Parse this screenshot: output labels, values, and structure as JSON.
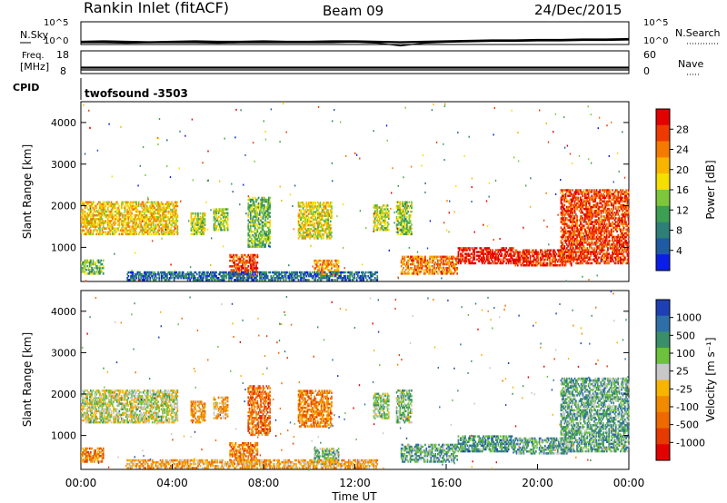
{
  "header": {
    "station": "Rankin Inlet (fitACF)",
    "beam": "Beam 09",
    "date": "24/Dec/2015"
  },
  "chart_data": [
    {
      "type": "line",
      "panel": "noise",
      "left_label": "N.Sky",
      "right_label": "N.Search",
      "left_ticks": [
        "10^5",
        "10^0"
      ],
      "right_ticks": [
        "10^5",
        "10^0"
      ],
      "ylim": [
        0,
        5
      ],
      "x_range_hours": [
        0,
        24
      ],
      "series": [
        {
          "values": [
            0.6,
            0.7,
            0.6,
            0.5,
            0.6,
            0.7,
            0.6,
            0.6,
            0.7,
            0.6,
            0.6,
            0.7,
            0.7,
            0.6,
            0.5,
            0.6,
            0.7,
            0.8,
            0.9,
            0.9,
            1.0,
            1.0,
            1.1,
            1.1,
            1.2
          ]
        },
        {
          "values": [
            0.4,
            0.4,
            0.3,
            0.4,
            0.4,
            0.4,
            0.3,
            0.4,
            0.4,
            0.4,
            0.4,
            0.4,
            0.5,
            0.3,
            -0.3,
            0.3,
            0.5,
            0.6,
            0.7,
            0.7,
            0.8,
            0.8,
            0.9,
            0.9,
            1.0
          ]
        }
      ]
    },
    {
      "type": "line",
      "panel": "frequency",
      "left_label": "Freq.",
      "left_unit": "[MHz]",
      "right_label": "Nave",
      "left_ticks": [
        "18",
        "8"
      ],
      "right_ticks": [
        "60",
        "0"
      ],
      "ylim": [
        8,
        18
      ],
      "x_range_hours": [
        0,
        24
      ],
      "series": [
        {
          "values": [
            10.6,
            10.6,
            10.6,
            10.6,
            10.6,
            10.6,
            10.6,
            10.6,
            10.6,
            10.6,
            10.6,
            10.6,
            10.6,
            10.6,
            10.6,
            10.6,
            10.6,
            10.6,
            10.6,
            10.6,
            10.6,
            10.6,
            10.6,
            10.6,
            10.6
          ]
        },
        {
          "values": [
            9.6,
            9.6,
            9.6,
            9.6,
            9.6,
            9.6,
            9.6,
            9.6,
            9.6,
            9.6,
            9.6,
            9.6,
            9.6,
            9.6,
            9.6,
            9.6,
            9.6,
            9.6,
            9.6,
            9.6,
            9.6,
            9.6,
            9.6,
            9.6,
            9.6
          ]
        }
      ]
    },
    {
      "type": "heatmap",
      "panel": "power",
      "cpid_label": "CPID",
      "cpid_value": "twofsound -3503",
      "ylabel": "Slant Range [km]",
      "yticks": [
        1000,
        2000,
        3000,
        4000
      ],
      "ylim": [
        180,
        4500
      ],
      "xlim": [
        0,
        24
      ],
      "colorbar": {
        "label": "Power [dB]",
        "ticks": [
          "28",
          "24",
          "20",
          "16",
          "12",
          "8",
          "4"
        ],
        "colors": [
          "#e30000",
          "#ee3a00",
          "#f57a00",
          "#f7b500",
          "#f3e000",
          "#7fc73a",
          "#3d9f52",
          "#2e7f78",
          "#1f5aa5",
          "#0a1ee6"
        ]
      },
      "regions": [
        {
          "x": [
            0.0,
            4.2
          ],
          "y": [
            1300,
            2100
          ],
          "level": 0.62
        },
        {
          "x": [
            0.0,
            1.0
          ],
          "y": [
            350,
            700
          ],
          "level": 0.4
        },
        {
          "x": [
            4.8,
            5.4
          ],
          "y": [
            1300,
            1800
          ],
          "level": 0.5
        },
        {
          "x": [
            5.8,
            6.4
          ],
          "y": [
            1400,
            1900
          ],
          "level": 0.45
        },
        {
          "x": [
            6.5,
            7.7
          ],
          "y": [
            300,
            800
          ],
          "level": 0.85
        },
        {
          "x": [
            7.3,
            8.3
          ],
          "y": [
            1000,
            2200
          ],
          "level": 0.4
        },
        {
          "x": [
            9.5,
            11.0
          ],
          "y": [
            1200,
            2100
          ],
          "level": 0.55
        },
        {
          "x": [
            10.2,
            11.3
          ],
          "y": [
            300,
            700
          ],
          "level": 0.7
        },
        {
          "x": [
            12.8,
            13.5
          ],
          "y": [
            1400,
            2000
          ],
          "level": 0.5
        },
        {
          "x": [
            13.8,
            14.5
          ],
          "y": [
            1300,
            2100
          ],
          "level": 0.45
        },
        {
          "x": [
            14.0,
            16.5
          ],
          "y": [
            350,
            800
          ],
          "level": 0.75
        },
        {
          "x": [
            16.5,
            19.0
          ],
          "y": [
            600,
            1000
          ],
          "level": 0.95
        },
        {
          "x": [
            19.0,
            21.5
          ],
          "y": [
            550,
            950
          ],
          "level": 0.9
        },
        {
          "x": [
            21.0,
            24.0
          ],
          "y": [
            600,
            2400
          ],
          "level": 0.85
        },
        {
          "x": [
            2.0,
            13.0
          ],
          "y": [
            200,
            400
          ],
          "level": 0.2
        }
      ]
    },
    {
      "type": "heatmap",
      "panel": "velocity",
      "ylabel": "Slant Range [km]",
      "yticks": [
        1000,
        2000,
        3000,
        4000
      ],
      "ylim": [
        180,
        4500
      ],
      "xlim": [
        0,
        24
      ],
      "xticks": [
        "00:00",
        "04:00",
        "08:00",
        "12:00",
        "16:00",
        "20:00",
        "00:00"
      ],
      "xlabel": "Time UT",
      "colorbar": {
        "label": "Velocity [m s⁻¹]",
        "ticks": [
          "1000",
          "500",
          "100",
          "25",
          "-25",
          "-100",
          "-500",
          "-1000"
        ],
        "colors": [
          "#1e3fb5",
          "#2f6fa8",
          "#3a8f6a",
          "#6cc23c",
          "#c8c8c8",
          "#f7b500",
          "#f28a00",
          "#ee6a00",
          "#e63a00",
          "#e30000"
        ]
      },
      "regions": [
        {
          "x": [
            0.0,
            4.2
          ],
          "y": [
            1300,
            2100
          ],
          "level": 0.55
        },
        {
          "x": [
            0.0,
            1.0
          ],
          "y": [
            350,
            700
          ],
          "level": 0.3
        },
        {
          "x": [
            4.8,
            5.4
          ],
          "y": [
            1300,
            1800
          ],
          "level": 0.35
        },
        {
          "x": [
            5.8,
            6.4
          ],
          "y": [
            1400,
            1900
          ],
          "level": 0.4
        },
        {
          "x": [
            6.5,
            7.7
          ],
          "y": [
            300,
            800
          ],
          "level": 0.3
        },
        {
          "x": [
            7.3,
            8.3
          ],
          "y": [
            1000,
            2200
          ],
          "level": 0.25
        },
        {
          "x": [
            9.5,
            11.0
          ],
          "y": [
            1200,
            2100
          ],
          "level": 0.3
        },
        {
          "x": [
            10.2,
            11.3
          ],
          "y": [
            300,
            700
          ],
          "level": 0.65
        },
        {
          "x": [
            12.8,
            13.5
          ],
          "y": [
            1400,
            2000
          ],
          "level": 0.6
        },
        {
          "x": [
            13.8,
            14.5
          ],
          "y": [
            1300,
            2100
          ],
          "level": 0.65
        },
        {
          "x": [
            14.0,
            16.5
          ],
          "y": [
            350,
            800
          ],
          "level": 0.7
        },
        {
          "x": [
            16.5,
            19.0
          ],
          "y": [
            600,
            1000
          ],
          "level": 0.75
        },
        {
          "x": [
            19.0,
            21.5
          ],
          "y": [
            550,
            950
          ],
          "level": 0.72
        },
        {
          "x": [
            21.0,
            24.0
          ],
          "y": [
            600,
            2400
          ],
          "level": 0.7
        },
        {
          "x": [
            2.0,
            13.0
          ],
          "y": [
            200,
            400
          ],
          "level": 0.4
        }
      ]
    }
  ]
}
